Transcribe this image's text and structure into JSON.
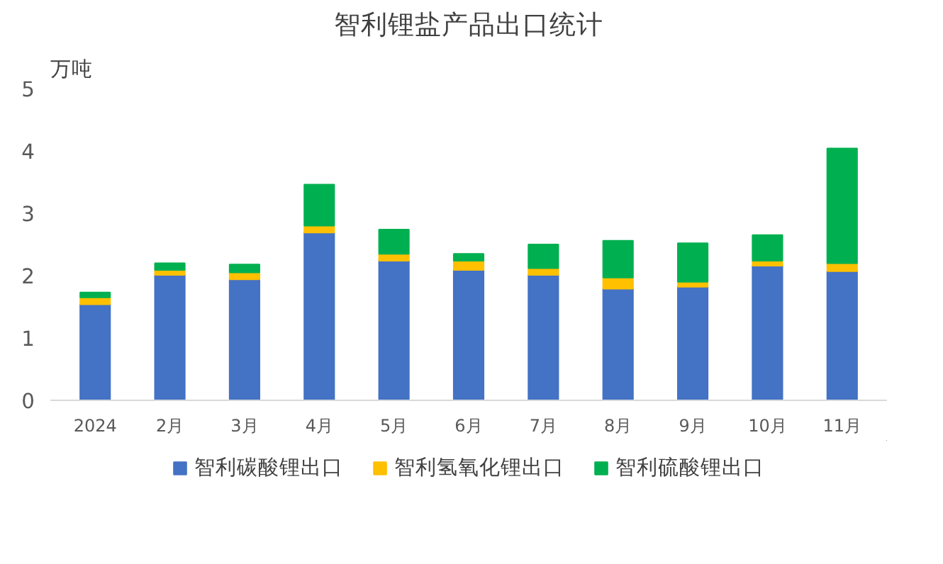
{
  "chart_data": {
    "type": "bar",
    "title": "智利锂盐产品出口统计",
    "ylabel": "万吨",
    "stacked": true,
    "categories": [
      "2024",
      "2月",
      "3月",
      "4月",
      "5月",
      "6月",
      "7月",
      "8月",
      "9月",
      "10月",
      "11月"
    ],
    "series": [
      {
        "name": "智利碳酸锂出口",
        "color": "#4472c4",
        "values": [
          1.54,
          2.01,
          1.94,
          2.69,
          2.24,
          2.09,
          2.01,
          1.79,
          1.82,
          2.16,
          2.07
        ]
      },
      {
        "name": "智利氢氧化锂出口",
        "color": "#ffc000",
        "values": [
          0.11,
          0.08,
          0.11,
          0.11,
          0.11,
          0.15,
          0.11,
          0.18,
          0.08,
          0.08,
          0.13
        ]
      },
      {
        "name": "智利硫酸锂出口",
        "color": "#00b050",
        "values": [
          0.08,
          0.11,
          0.13,
          0.66,
          0.39,
          0.11,
          0.38,
          0.59,
          0.62,
          0.41,
          1.84
        ]
      }
    ],
    "ylim": [
      0,
      5
    ],
    "yticks": [
      0,
      1,
      2,
      3,
      4,
      5
    ],
    "grid": false,
    "legend": "bottom"
  }
}
